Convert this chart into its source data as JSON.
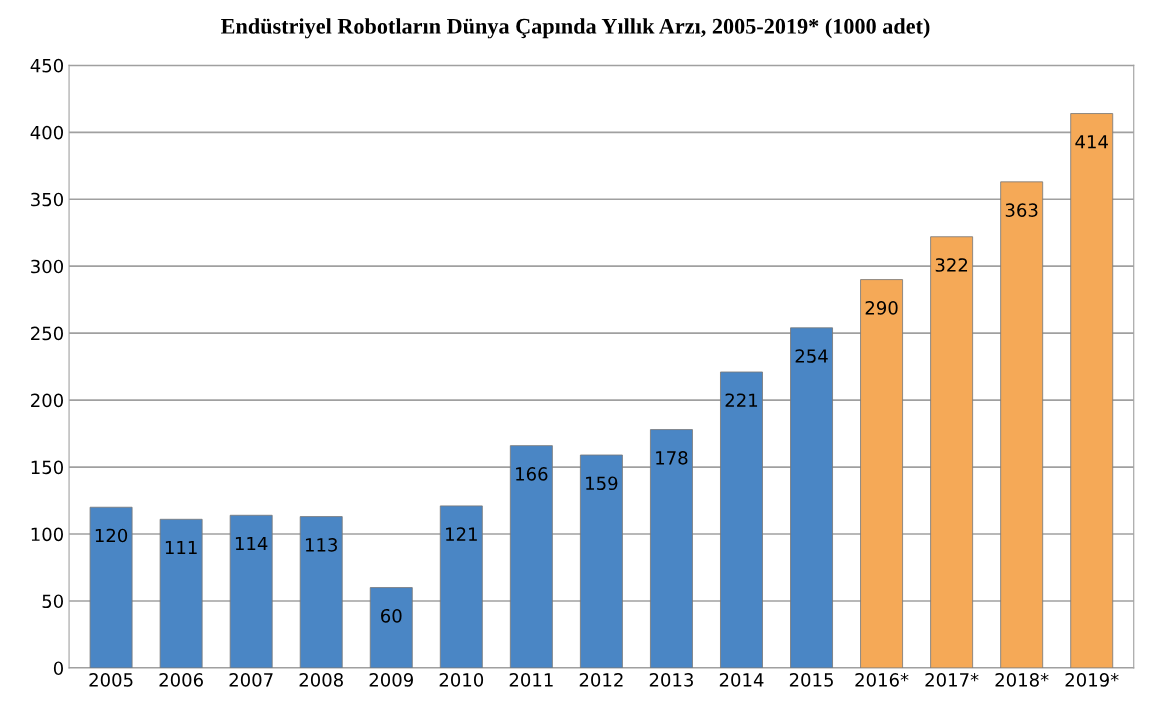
{
  "chart_data": {
    "type": "bar",
    "title": "Endüstriyel Robotların Dünya Çapında Yıllık Arzı, 2005-2019* (1000 adet)",
    "categories": [
      "2005",
      "2006",
      "2007",
      "2008",
      "2009",
      "2010",
      "2011",
      "2012",
      "2013",
      "2014",
      "2015",
      "2016*",
      "2017*",
      "2018*",
      "2019*"
    ],
    "values": [
      120,
      111,
      114,
      113,
      60,
      121,
      166,
      159,
      178,
      221,
      254,
      290,
      322,
      363,
      414
    ],
    "colors": [
      "#4a86c5",
      "#4a86c5",
      "#4a86c5",
      "#4a86c5",
      "#4a86c5",
      "#4a86c5",
      "#4a86c5",
      "#4a86c5",
      "#4a86c5",
      "#4a86c5",
      "#4a86c5",
      "#f5a957",
      "#f5a957",
      "#f5a957",
      "#f5a957"
    ],
    "ylim": [
      0,
      450
    ],
    "yticks": [
      0,
      50,
      100,
      150,
      200,
      250,
      300,
      350,
      400,
      450
    ],
    "grid": "y",
    "data_labels": true
  }
}
